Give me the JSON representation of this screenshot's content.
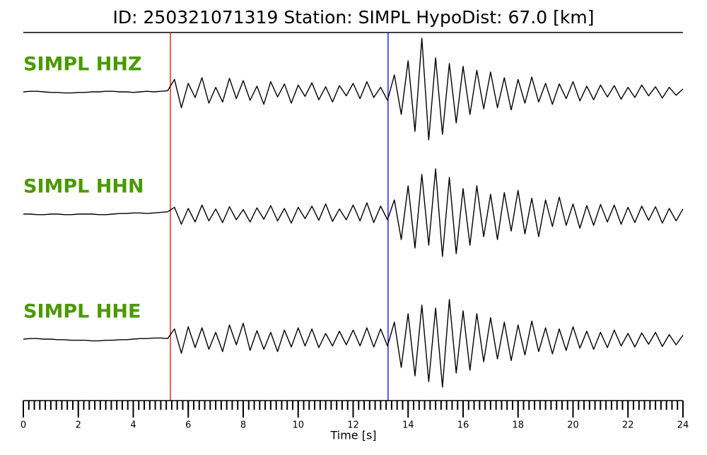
{
  "chart_data": {
    "type": "seismogram",
    "title": "ID: 250321071319   Station: SIMPL   HypoDist:    67.0 [km]",
    "xlabel": "Time [s]",
    "xlim": [
      0,
      24
    ],
    "xticks": [
      0,
      2,
      4,
      6,
      8,
      10,
      12,
      14,
      16,
      18,
      20,
      22,
      24
    ],
    "xminor_step": 0.2,
    "ylim": [
      -100,
      100
    ],
    "label_color": "#4a9a00",
    "markers": [
      {
        "x": 5.35,
        "color": "#ff0000"
      },
      {
        "x": 13.27,
        "color": "#0000ff"
      }
    ],
    "x": [
      0,
      0.25,
      0.5,
      0.75,
      1,
      1.25,
      1.5,
      1.75,
      2,
      2.25,
      2.5,
      2.75,
      3,
      3.25,
      3.5,
      3.75,
      4,
      4.25,
      4.5,
      4.75,
      5,
      5.25,
      5.5,
      5.75,
      6,
      6.25,
      6.5,
      6.75,
      7,
      7.25,
      7.5,
      7.75,
      8,
      8.25,
      8.5,
      8.75,
      9,
      9.25,
      9.5,
      9.75,
      10,
      10.25,
      10.5,
      10.75,
      11,
      11.25,
      11.5,
      11.75,
      12,
      12.25,
      12.5,
      12.75,
      13,
      13.25,
      13.5,
      13.75,
      14,
      14.25,
      14.5,
      14.75,
      15,
      15.25,
      15.5,
      15.75,
      16,
      16.25,
      16.5,
      16.75,
      17,
      17.25,
      17.5,
      17.75,
      18,
      18.25,
      18.5,
      18.75,
      19,
      19.25,
      19.5,
      19.75,
      20,
      20.25,
      20.5,
      20.75,
      21,
      21.25,
      21.5,
      21.75,
      22,
      22.25,
      22.5,
      22.75,
      23,
      23.25,
      23.5,
      23.75,
      24
    ],
    "series": [
      {
        "name": "SIMPL HHZ",
        "color": "#000000",
        "values": [
          0,
          1,
          1,
          0,
          -1,
          -1,
          -2,
          -2,
          -1,
          -1,
          0,
          0,
          1,
          1,
          0,
          0,
          -1,
          0,
          1,
          0,
          1,
          2,
          22,
          -28,
          15,
          -10,
          25,
          -20,
          8,
          -18,
          24,
          -12,
          20,
          -15,
          10,
          -22,
          18,
          -9,
          14,
          -20,
          12,
          -8,
          16,
          -14,
          9,
          -18,
          11,
          -7,
          15,
          -12,
          18,
          -10,
          8,
          -15,
          30,
          -40,
          55,
          -70,
          95,
          -85,
          60,
          -75,
          50,
          -55,
          45,
          -40,
          38,
          -30,
          35,
          -28,
          25,
          -32,
          22,
          -20,
          26,
          -18,
          15,
          -22,
          14,
          -12,
          18,
          -16,
          10,
          -14,
          12,
          -9,
          11,
          -13,
          8,
          -10,
          12,
          -7,
          9,
          -11,
          8,
          -6,
          5
        ]
      },
      {
        "name": "SIMPL HHN",
        "color": "#000000",
        "values": [
          0,
          0,
          -1,
          -1,
          0,
          0,
          -1,
          -1,
          0,
          0,
          0,
          -1,
          -1,
          0,
          1,
          1,
          2,
          2,
          1,
          2,
          3,
          4,
          12,
          -18,
          10,
          -14,
          16,
          -12,
          9,
          -15,
          13,
          -10,
          8,
          -14,
          11,
          -9,
          15,
          -12,
          10,
          -16,
          12,
          -8,
          14,
          -11,
          18,
          -13,
          9,
          -10,
          16,
          -12,
          20,
          -15,
          14,
          -10,
          25,
          -45,
          50,
          -60,
          70,
          -55,
          80,
          -75,
          65,
          -70,
          45,
          -55,
          50,
          -40,
          35,
          -45,
          38,
          -30,
          42,
          -35,
          28,
          -40,
          25,
          -22,
          30,
          -20,
          18,
          -25,
          15,
          -20,
          17,
          -14,
          16,
          -18,
          12,
          -15,
          14,
          -11,
          13,
          -16,
          10,
          -12,
          9
        ]
      },
      {
        "name": "SIMPL HHE",
        "color": "#000000",
        "values": [
          0,
          1,
          1,
          0,
          0,
          -1,
          -1,
          -2,
          -2,
          -2,
          -3,
          -3,
          -2,
          -2,
          -1,
          -1,
          0,
          1,
          1,
          2,
          2,
          1,
          18,
          -25,
          22,
          -15,
          20,
          -18,
          12,
          -22,
          25,
          -10,
          28,
          -20,
          15,
          -18,
          12,
          -22,
          16,
          -14,
          20,
          -12,
          18,
          -15,
          10,
          -12,
          14,
          -10,
          16,
          -12,
          20,
          -14,
          18,
          -12,
          30,
          -50,
          45,
          -65,
          60,
          -75,
          55,
          -85,
          70,
          -60,
          50,
          -55,
          45,
          -40,
          38,
          -35,
          30,
          -38,
          25,
          -28,
          32,
          -22,
          20,
          -26,
          18,
          -20,
          22,
          -16,
          14,
          -18,
          12,
          -15,
          16,
          -12,
          10,
          -14,
          11,
          -9,
          12,
          -13,
          8,
          -10,
          7
        ]
      }
    ]
  }
}
